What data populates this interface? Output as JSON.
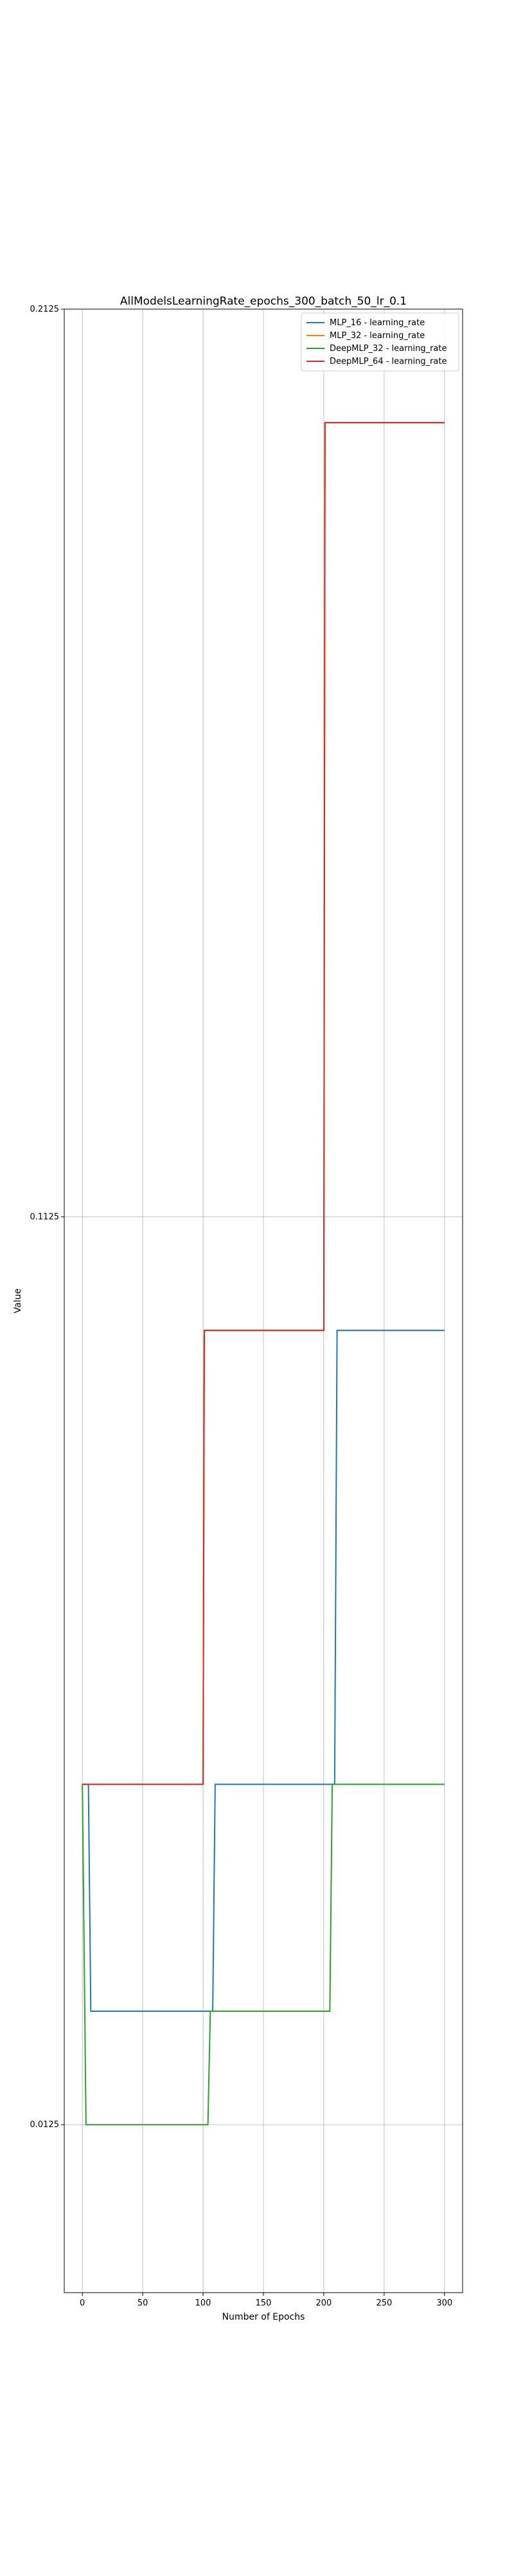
{
  "chart_data": {
    "type": "line",
    "title": "AllModelsLearningRate_epochs_300_batch_50_lr_0.1",
    "xlabel": "Number of Epochs",
    "ylabel": "Value",
    "xlim": [
      -15,
      315
    ],
    "ylim": [
      -0.006,
      0.2125
    ],
    "xticks": [
      0,
      50,
      100,
      150,
      200,
      250,
      300
    ],
    "yticks": [
      0.0125,
      0.1125,
      0.2125
    ],
    "ytick_labels": [
      "0.0125",
      "0.1125",
      "0.2125"
    ],
    "grid": true,
    "legend_position": "top-right",
    "series": [
      {
        "name": "MLP_16 - learning_rate",
        "color": "#1f77b4",
        "points": [
          [
            0,
            0.05
          ],
          [
            5,
            0.05
          ],
          [
            7,
            0.025
          ],
          [
            108,
            0.025
          ],
          [
            110,
            0.05
          ],
          [
            209,
            0.05
          ],
          [
            211,
            0.1
          ],
          [
            300,
            0.1
          ]
        ]
      },
      {
        "name": "MLP_32 - learning_rate",
        "color": "#ff7f0e",
        "points": [
          [
            0,
            0.05
          ],
          [
            100,
            0.05
          ],
          [
            101,
            0.1
          ],
          [
            200,
            0.1
          ],
          [
            201,
            0.2
          ],
          [
            300,
            0.2
          ]
        ]
      },
      {
        "name": "DeepMLP_32 - learning_rate",
        "color": "#2ca02c",
        "points": [
          [
            0,
            0.05
          ],
          [
            2,
            0.025
          ],
          [
            3,
            0.0125
          ],
          [
            104,
            0.0125
          ],
          [
            106,
            0.025
          ],
          [
            205,
            0.025
          ],
          [
            207,
            0.05
          ],
          [
            300,
            0.05
          ]
        ]
      },
      {
        "name": "DeepMLP_64 - learning_rate",
        "color": "#d62728",
        "points": [
          [
            0,
            0.05
          ],
          [
            100,
            0.05
          ],
          [
            101,
            0.1
          ],
          [
            200,
            0.1
          ],
          [
            201,
            0.2
          ],
          [
            300,
            0.2
          ]
        ]
      }
    ]
  }
}
